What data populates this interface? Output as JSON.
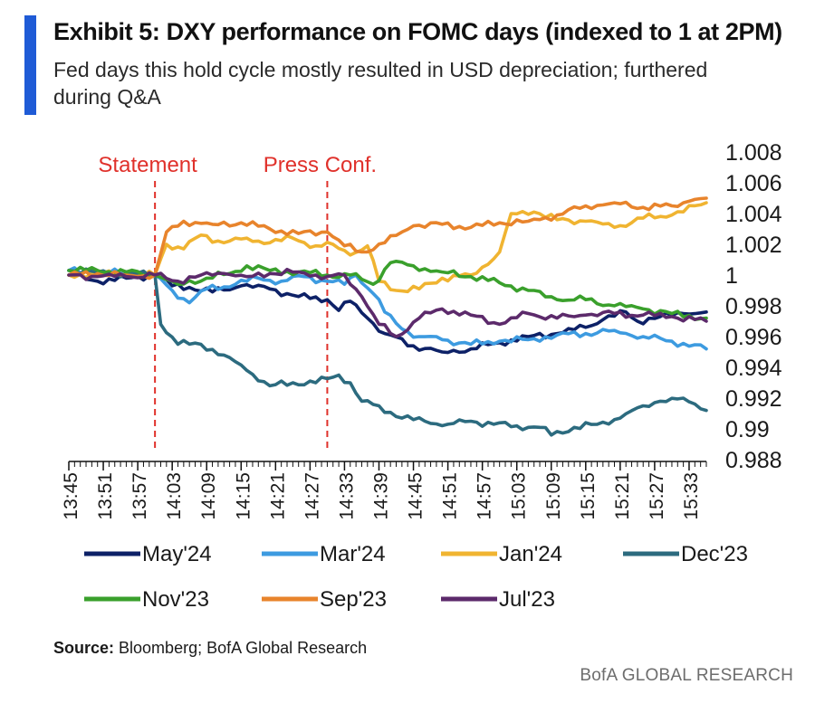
{
  "header": {
    "title": "Exhibit 5: DXY performance on FOMC days (indexed to 1 at 2PM)",
    "subtitle": "Fed days this hold cycle mostly resulted in USD depreciation; furthered during Q&A"
  },
  "footer": {
    "source_label": "Source:",
    "source_text": " Bloomberg; BofA Global Research",
    "brand": "BofA GLOBAL RESEARCH"
  },
  "colors": {
    "accent": "#1f5bd6",
    "event_line": "#e0312b"
  },
  "chart_data": {
    "type": "line",
    "title": "Exhibit 5: DXY performance on FOMC days (indexed to 1 at 2PM)",
    "xlabel": "",
    "ylabel": "",
    "ylim": [
      0.988,
      1.008
    ],
    "yticks": [
      1.008,
      1.006,
      1.004,
      1.002,
      1,
      0.998,
      0.996,
      0.994,
      0.992,
      0.99,
      0.988
    ],
    "yticklabels": [
      "1.008",
      "1.006",
      "1.004",
      "1.002",
      "1",
      "0.998",
      "0.996",
      "0.994",
      "0.992",
      "0.99",
      "0.988"
    ],
    "x_start": "13:45",
    "x_end": "15:36",
    "xticks": [
      "13:45",
      "13:51",
      "13:57",
      "14:03",
      "14:09",
      "14:15",
      "14:21",
      "14:27",
      "14:33",
      "14:39",
      "14:45",
      "14:51",
      "14:57",
      "15:03",
      "15:09",
      "15:15",
      "15:21",
      "15:27",
      "15:33"
    ],
    "annotations": [
      {
        "text": "Statement",
        "x": "14:00"
      },
      {
        "text": "Press Conf.",
        "x": "14:30"
      }
    ],
    "legend_position": "bottom",
    "series": [
      {
        "name": "May'24",
        "color": "#0d2167",
        "keypoints": [
          [
            "13:45",
            1.0
          ],
          [
            "13:50",
            0.9996
          ],
          [
            "13:55",
            0.9998
          ],
          [
            "14:00",
            1.0
          ],
          [
            "14:03",
            0.9993
          ],
          [
            "14:06",
            0.9992
          ],
          [
            "14:10",
            0.9989
          ],
          [
            "14:15",
            0.9993
          ],
          [
            "14:20",
            0.9991
          ],
          [
            "14:25",
            0.9986
          ],
          [
            "14:30",
            0.9984
          ],
          [
            "14:32",
            0.9977
          ],
          [
            "14:34",
            0.9983
          ],
          [
            "14:37",
            0.9972
          ],
          [
            "14:40",
            0.9962
          ],
          [
            "14:45",
            0.9954
          ],
          [
            "14:50",
            0.995
          ],
          [
            "14:55",
            0.9952
          ],
          [
            "15:00",
            0.9956
          ],
          [
            "15:05",
            0.996
          ],
          [
            "15:10",
            0.9962
          ],
          [
            "15:15",
            0.9966
          ],
          [
            "15:18",
            0.9971
          ],
          [
            "15:22",
            0.9976
          ],
          [
            "15:24",
            0.997
          ],
          [
            "15:28",
            0.9973
          ],
          [
            "15:32",
            0.9975
          ],
          [
            "15:36",
            0.9976
          ]
        ]
      },
      {
        "name": "Mar'24",
        "color": "#3d9be0",
        "keypoints": [
          [
            "13:45",
            1.0003
          ],
          [
            "13:50",
            1.0002
          ],
          [
            "13:55",
            1.0001
          ],
          [
            "14:00",
            1.0
          ],
          [
            "14:03",
            0.999
          ],
          [
            "14:06",
            0.9982
          ],
          [
            "14:09",
            0.9991
          ],
          [
            "14:14",
            0.9994
          ],
          [
            "14:18",
            0.9998
          ],
          [
            "14:22",
            0.9996
          ],
          [
            "14:26",
            0.9999
          ],
          [
            "14:30",
            0.9996
          ],
          [
            "14:33",
            0.9994
          ],
          [
            "14:35",
            1.0
          ],
          [
            "14:38",
            0.9988
          ],
          [
            "14:40",
            0.9976
          ],
          [
            "14:43",
            0.9965
          ],
          [
            "14:46",
            0.996
          ],
          [
            "14:50",
            0.9958
          ],
          [
            "14:55",
            0.9955
          ],
          [
            "15:00",
            0.9957
          ],
          [
            "15:05",
            0.9958
          ],
          [
            "15:10",
            0.9961
          ],
          [
            "15:15",
            0.9962
          ],
          [
            "15:20",
            0.9964
          ],
          [
            "15:25",
            0.996
          ],
          [
            "15:30",
            0.9957
          ],
          [
            "15:36",
            0.9952
          ]
        ]
      },
      {
        "name": "Jan'24",
        "color": "#f0b431",
        "keypoints": [
          [
            "13:45",
            1.0
          ],
          [
            "13:50",
            1.0001
          ],
          [
            "13:55",
            1.0
          ],
          [
            "14:00",
            1.0
          ],
          [
            "14:02",
            1.002
          ],
          [
            "14:05",
            1.0017
          ],
          [
            "14:08",
            1.0026
          ],
          [
            "14:12",
            1.0021
          ],
          [
            "14:16",
            1.0024
          ],
          [
            "14:20",
            1.0021
          ],
          [
            "14:24",
            1.0024
          ],
          [
            "14:28",
            1.0019
          ],
          [
            "14:31",
            1.002
          ],
          [
            "14:34",
            1.0013
          ],
          [
            "14:37",
            1.0019
          ],
          [
            "14:39",
            0.9996
          ],
          [
            "14:42",
            0.999
          ],
          [
            "14:46",
            0.9991
          ],
          [
            "14:50",
            0.9998
          ],
          [
            "14:55",
            1.0
          ],
          [
            "14:58",
            1.0007
          ],
          [
            "15:00",
            1.0015
          ],
          [
            "15:02",
            1.004
          ],
          [
            "15:06",
            1.0041
          ],
          [
            "15:10",
            1.0036
          ],
          [
            "15:15",
            1.0035
          ],
          [
            "15:20",
            1.0031
          ],
          [
            "15:25",
            1.0037
          ],
          [
            "15:30",
            1.0039
          ],
          [
            "15:36",
            1.0047
          ]
        ]
      },
      {
        "name": "Dec'23",
        "color": "#2c6b7f",
        "keypoints": [
          [
            "13:45",
            1.0003
          ],
          [
            "13:50",
            1.0002
          ],
          [
            "13:55",
            1.0001
          ],
          [
            "14:00",
            1.0
          ],
          [
            "14:01",
            0.9968
          ],
          [
            "14:04",
            0.9955
          ],
          [
            "14:08",
            0.9955
          ],
          [
            "14:12",
            0.9948
          ],
          [
            "14:16",
            0.9938
          ],
          [
            "14:20",
            0.9928
          ],
          [
            "14:24",
            0.993
          ],
          [
            "14:28",
            0.993
          ],
          [
            "14:32",
            0.9935
          ],
          [
            "14:34",
            0.993
          ],
          [
            "14:36",
            0.9918
          ],
          [
            "14:39",
            0.9915
          ],
          [
            "14:43",
            0.9907
          ],
          [
            "14:47",
            0.9905
          ],
          [
            "14:51",
            0.9903
          ],
          [
            "14:55",
            0.9905
          ],
          [
            "14:59",
            0.9903
          ],
          [
            "15:03",
            0.9902
          ],
          [
            "15:07",
            0.9901
          ],
          [
            "15:09",
            0.9896
          ],
          [
            "15:13",
            0.9901
          ],
          [
            "15:17",
            0.9903
          ],
          [
            "15:21",
            0.9907
          ],
          [
            "15:25",
            0.9915
          ],
          [
            "15:28",
            0.9918
          ],
          [
            "15:32",
            0.992
          ],
          [
            "15:36",
            0.9912
          ]
        ]
      },
      {
        "name": "Nov'23",
        "color": "#3aa02c",
        "keypoints": [
          [
            "13:45",
            1.0003
          ],
          [
            "13:50",
            1.0003
          ],
          [
            "13:55",
            1.0002
          ],
          [
            "14:00",
            1.0
          ],
          [
            "14:04",
            0.9994
          ],
          [
            "14:09",
            0.9998
          ],
          [
            "14:13",
            1.0001
          ],
          [
            "14:16",
            1.0006
          ],
          [
            "14:20",
            1.0003
          ],
          [
            "14:25",
            1.0002
          ],
          [
            "14:30",
            1.0
          ],
          [
            "14:34",
            1.0
          ],
          [
            "14:38",
            0.9994
          ],
          [
            "14:41",
            1.0008
          ],
          [
            "14:45",
            1.0006
          ],
          [
            "14:50",
            1.0002
          ],
          [
            "14:55",
            0.9999
          ],
          [
            "15:00",
            0.9995
          ],
          [
            "15:05",
            0.999
          ],
          [
            "15:10",
            0.9984
          ],
          [
            "15:15",
            0.9984
          ],
          [
            "15:20",
            0.998
          ],
          [
            "15:25",
            0.9978
          ],
          [
            "15:30",
            0.9975
          ],
          [
            "15:36",
            0.9972
          ]
        ]
      },
      {
        "name": "Sep'23",
        "color": "#e8842c",
        "keypoints": [
          [
            "13:45",
            1.0
          ],
          [
            "13:50",
            1.0001
          ],
          [
            "13:55",
            1.0
          ],
          [
            "14:00",
            1.0
          ],
          [
            "14:02",
            1.0028
          ],
          [
            "14:05",
            1.0035
          ],
          [
            "14:10",
            1.0033
          ],
          [
            "14:15",
            1.0034
          ],
          [
            "14:20",
            1.003
          ],
          [
            "14:25",
            1.0027
          ],
          [
            "14:30",
            1.0028
          ],
          [
            "14:33",
            1.0019
          ],
          [
            "14:36",
            1.0015
          ],
          [
            "14:40",
            1.0021
          ],
          [
            "14:45",
            1.0032
          ],
          [
            "14:50",
            1.0033
          ],
          [
            "14:55",
            1.0031
          ],
          [
            "15:00",
            1.0034
          ],
          [
            "15:05",
            1.0035
          ],
          [
            "15:10",
            1.0039
          ],
          [
            "15:15",
            1.0045
          ],
          [
            "15:20",
            1.0047
          ],
          [
            "15:25",
            1.0044
          ],
          [
            "15:30",
            1.0045
          ],
          [
            "15:33",
            1.0048
          ],
          [
            "15:36",
            1.005
          ]
        ]
      },
      {
        "name": "Jul'23",
        "color": "#5c2a6b",
        "keypoints": [
          [
            "13:45",
            1.0
          ],
          [
            "13:50",
            0.9999
          ],
          [
            "13:55",
            0.9999
          ],
          [
            "14:00",
            1.0
          ],
          [
            "14:04",
            0.9996
          ],
          [
            "14:08",
            1.0
          ],
          [
            "14:12",
            1.0001
          ],
          [
            "14:16",
            0.9999
          ],
          [
            "14:20",
            1.0001
          ],
          [
            "14:25",
            1.0002
          ],
          [
            "14:30",
            0.9999
          ],
          [
            "14:33",
            1.0
          ],
          [
            "14:36",
            0.9986
          ],
          [
            "14:39",
            0.9968
          ],
          [
            "14:42",
            0.996
          ],
          [
            "14:46",
            0.9972
          ],
          [
            "14:50",
            0.9978
          ],
          [
            "14:55",
            0.9974
          ],
          [
            "15:00",
            0.9968
          ],
          [
            "15:05",
            0.9975
          ],
          [
            "15:10",
            0.9972
          ],
          [
            "15:15",
            0.9974
          ],
          [
            "15:20",
            0.9975
          ],
          [
            "15:25",
            0.9974
          ],
          [
            "15:30",
            0.9973
          ],
          [
            "15:36",
            0.997
          ]
        ]
      }
    ]
  }
}
